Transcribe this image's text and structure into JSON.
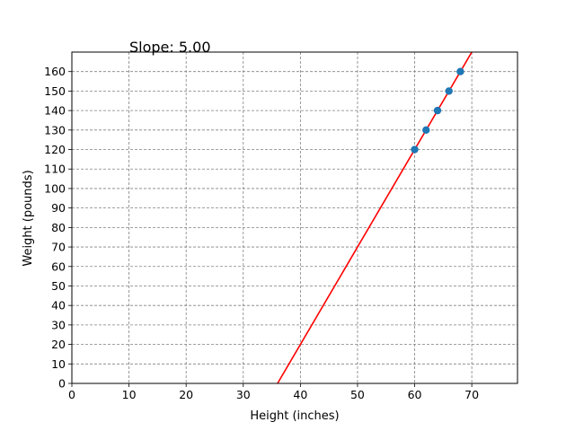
{
  "chart_data": {
    "type": "scatter",
    "xlabel": "Height (inches)",
    "ylabel": "Weight (pounds)",
    "annotation": "Slope: 5.00",
    "xlim": [
      0,
      78
    ],
    "ylim": [
      0,
      170
    ],
    "x_ticks": [
      0,
      10,
      20,
      30,
      40,
      50,
      60,
      70
    ],
    "y_ticks": [
      0,
      10,
      20,
      30,
      40,
      50,
      60,
      70,
      80,
      90,
      100,
      110,
      120,
      130,
      140,
      150,
      160
    ],
    "grid": true,
    "points": [
      {
        "x": 60,
        "y": 120
      },
      {
        "x": 62,
        "y": 130
      },
      {
        "x": 64,
        "y": 140
      },
      {
        "x": 66,
        "y": 150
      },
      {
        "x": 68,
        "y": 160
      }
    ],
    "fit_line": {
      "slope": 5.0,
      "intercept": -180,
      "color": "#ff0000"
    },
    "point_color": "#1f77b4",
    "grid_color": "#808080"
  }
}
